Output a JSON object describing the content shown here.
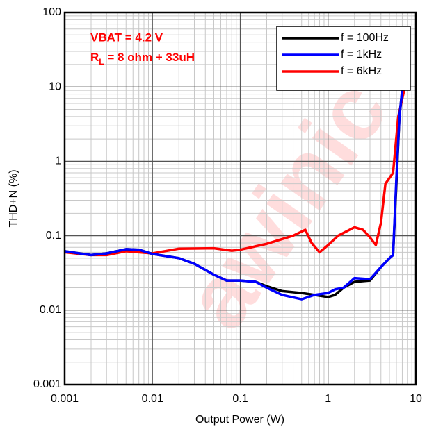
{
  "chart_data": {
    "type": "line",
    "xlabel": "Output Power (W)",
    "ylabel": "THD+N (%)",
    "annotations": [
      {
        "text": "VBAT = 4.2 V"
      },
      {
        "text": "R",
        "sub": "L",
        "rest": " = 8 ohm + 33uH"
      }
    ],
    "watermark": "awinic",
    "xscale": "log",
    "yscale": "log",
    "grid": true,
    "legend": "upper right",
    "xlim": [
      0.001,
      10
    ],
    "ylim": [
      0.001,
      100
    ],
    "xticks": [
      0.001,
      0.01,
      0.1,
      1,
      10
    ],
    "yticks": [
      0.001,
      0.01,
      0.1,
      1,
      10,
      100
    ],
    "series": [
      {
        "name": "f = 100Hz",
        "color": "#000000",
        "x": [
          0.001,
          0.002,
          0.003,
          0.005,
          0.007,
          0.01,
          0.02,
          0.03,
          0.05,
          0.07,
          0.1,
          0.15,
          0.2,
          0.3,
          0.5,
          0.7,
          1,
          1.2,
          1.5,
          2,
          3,
          4,
          5,
          5.5,
          6,
          6.5,
          7.5
        ],
        "values": [
          0.062,
          0.055,
          0.058,
          0.066,
          0.065,
          0.057,
          0.05,
          0.042,
          0.03,
          0.025,
          0.025,
          0.024,
          0.021,
          0.018,
          0.017,
          0.016,
          0.015,
          0.016,
          0.02,
          0.024,
          0.025,
          0.038,
          0.05,
          0.055,
          0.5,
          4,
          20
        ]
      },
      {
        "name": "f = 1kHz",
        "color": "#0000ff",
        "x": [
          0.001,
          0.002,
          0.003,
          0.005,
          0.007,
          0.01,
          0.02,
          0.03,
          0.05,
          0.07,
          0.1,
          0.15,
          0.2,
          0.3,
          0.5,
          0.7,
          1,
          1.2,
          1.5,
          2,
          3,
          4,
          5,
          5.5,
          6,
          6.5,
          7.5
        ],
        "values": [
          0.062,
          0.055,
          0.058,
          0.066,
          0.065,
          0.057,
          0.05,
          0.042,
          0.03,
          0.025,
          0.025,
          0.024,
          0.02,
          0.016,
          0.014,
          0.016,
          0.017,
          0.019,
          0.02,
          0.027,
          0.026,
          0.038,
          0.05,
          0.055,
          0.6,
          4,
          20
        ]
      },
      {
        "name": "f = 6kHz",
        "color": "#ff0000",
        "x": [
          0.001,
          0.002,
          0.003,
          0.005,
          0.01,
          0.02,
          0.05,
          0.08,
          0.1,
          0.2,
          0.4,
          0.55,
          0.65,
          0.8,
          1,
          1.3,
          2,
          2.5,
          3,
          3.5,
          4,
          4.5,
          5.5,
          6.3,
          7.5,
          8
        ],
        "values": [
          0.06,
          0.055,
          0.055,
          0.062,
          0.058,
          0.067,
          0.068,
          0.063,
          0.065,
          0.078,
          0.1,
          0.12,
          0.08,
          0.06,
          0.075,
          0.1,
          0.13,
          0.12,
          0.095,
          0.075,
          0.15,
          0.5,
          0.7,
          4,
          10,
          25
        ]
      }
    ]
  }
}
